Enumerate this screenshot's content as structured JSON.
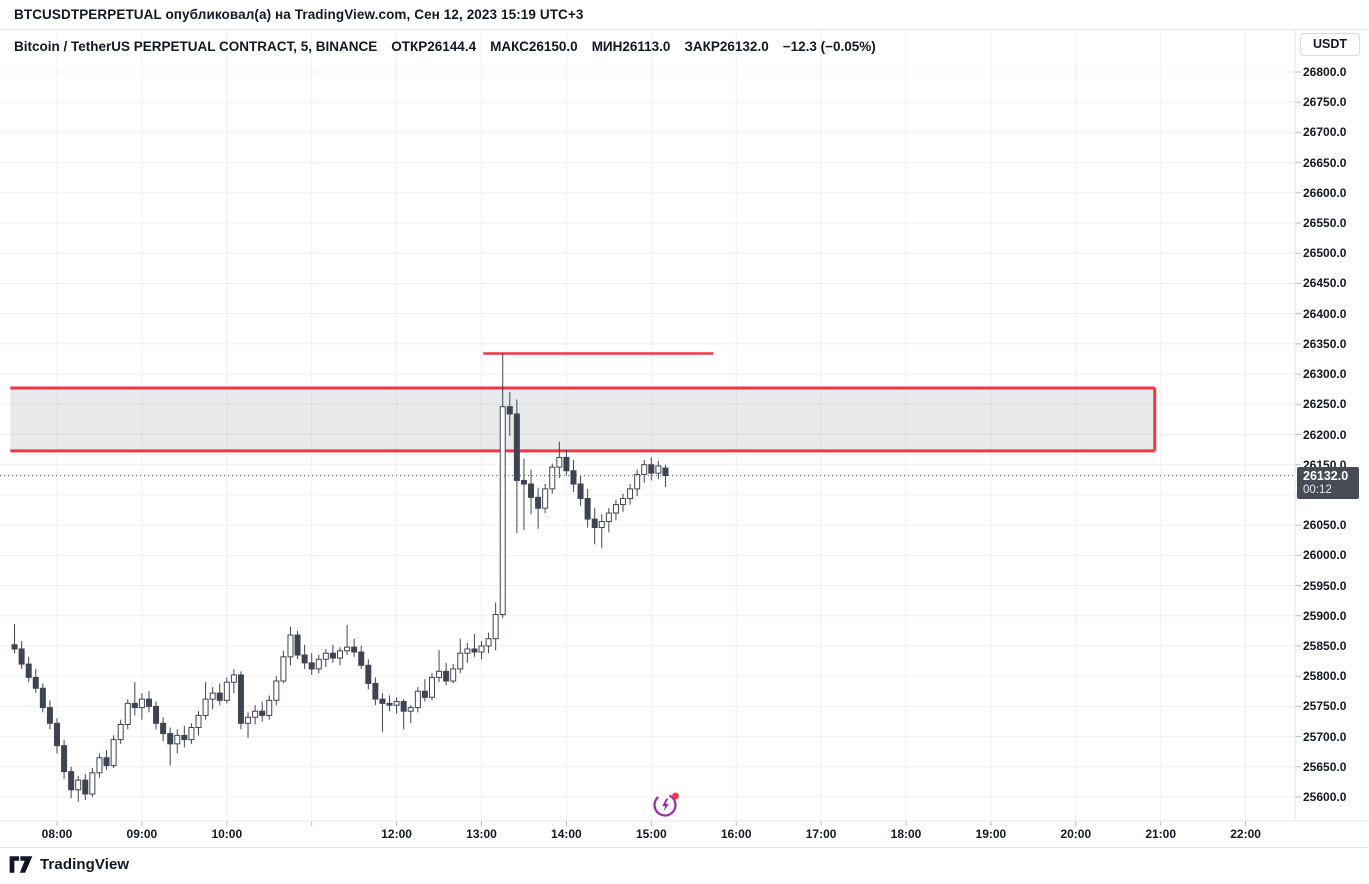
{
  "page": {
    "title_bar": "BTCUSDTPERPETUAL опубликовал(а) на TradingView.com, Сен 12, 2023 15:19 UTC+3"
  },
  "header": {
    "symbol_title": "Bitcoin / TetherUS PERPETUAL CONTRACT, 5, BINANCE",
    "stats": [
      "ОТКР26144.4",
      "МАКС26150.0",
      "МИН26113.0",
      "ЗАКР26132.0",
      "−12.3 (−0.05%)"
    ],
    "currency_button": "USDT"
  },
  "footer": {
    "logo_text": "TradingView"
  },
  "icons": [
    "lightning-streak-icon",
    "tradingview-logo-icon"
  ],
  "colors": {
    "text": "#131722",
    "grid": "#eef0f4",
    "candle_dark": "#3e4451",
    "candle_up_fill": "#ffffff",
    "drawing_red": "#f23645",
    "zone_fill": "rgba(120,123,134,0.16)",
    "price_tag_bg": "#474b56",
    "axis_tick": "#b8bcc6",
    "dotted_price_line": "#4c5059",
    "lightning_purple": "#9c27b0"
  },
  "chart_data": {
    "type": "candlestick",
    "title": "Bitcoin / TetherUS PERPETUAL CONTRACT, 5, BINANCE",
    "interval_minutes": 5,
    "last_price": 26132.0,
    "price_line": {
      "label": "26132.0",
      "countdown": "00:12",
      "price": 26132.0
    },
    "price_axis": {
      "min": 25600,
      "max": 26800,
      "step": 50,
      "ticks": [
        "26800.0",
        "26750.0",
        "26700.0",
        "26650.0",
        "26600.0",
        "26550.0",
        "26500.0",
        "26450.0",
        "26400.0",
        "26350.0",
        "26300.0",
        "26250.0",
        "26200.0",
        "26150.0",
        "26100.0",
        "26050.0",
        "26000.0",
        "25950.0",
        "25900.0",
        "25850.0",
        "25800.0",
        "25750.0",
        "25700.0",
        "25650.0",
        "25600.0"
      ]
    },
    "time_axis": {
      "labels": [
        {
          "label": "08:00",
          "hour": 8
        },
        {
          "label": "09:00",
          "hour": 9
        },
        {
          "label": "10:00",
          "hour": 10
        },
        {
          "label": "12:00",
          "hour": 12
        },
        {
          "label": "13:00",
          "hour": 13
        },
        {
          "label": "14:00",
          "hour": 14
        },
        {
          "label": "15:00",
          "hour": 15
        },
        {
          "label": "16:00",
          "hour": 16
        },
        {
          "label": "17:00",
          "hour": 17
        },
        {
          "label": "18:00",
          "hour": 18
        },
        {
          "label": "19:00",
          "hour": 19
        },
        {
          "label": "20:00",
          "hour": 20
        },
        {
          "label": "21:00",
          "hour": 21
        },
        {
          "label": "22:00",
          "hour": 22
        }
      ],
      "grid_hours": [
        8,
        9,
        10,
        11,
        12,
        13,
        14,
        15,
        16,
        17,
        18,
        19,
        20,
        21,
        22
      ]
    },
    "drawings": {
      "zone": {
        "type": "rect",
        "price_top": 26277,
        "price_bottom": 26173,
        "time_start": 7.45,
        "time_end": 20.93,
        "border_color": "#f23645",
        "fill_color": "rgba(120,123,134,0.16)"
      },
      "resistance_line": {
        "type": "horizontal_segment",
        "price": 26334,
        "time_start": 13.02,
        "time_end": 15.73,
        "color": "#f23645"
      }
    },
    "candles_meta": {
      "first_bar_hour": 7.5,
      "bar_hours": 0.0833333,
      "fields": [
        "open",
        "high",
        "low",
        "close"
      ]
    },
    "candles": [
      [
        25852,
        25886,
        25838,
        25845
      ],
      [
        25845,
        25858,
        25812,
        25820
      ],
      [
        25820,
        25832,
        25790,
        25798
      ],
      [
        25798,
        25812,
        25772,
        25780
      ],
      [
        25780,
        25788,
        25740,
        25748
      ],
      [
        25748,
        25760,
        25712,
        25722
      ],
      [
        25722,
        25730,
        25672,
        25685
      ],
      [
        25685,
        25695,
        25630,
        25642
      ],
      [
        25642,
        25650,
        25598,
        25612
      ],
      [
        25612,
        25635,
        25592,
        25628
      ],
      [
        25628,
        25638,
        25595,
        25605
      ],
      [
        25605,
        25648,
        25600,
        25640
      ],
      [
        25640,
        25672,
        25632,
        25665
      ],
      [
        25665,
        25678,
        25645,
        25652
      ],
      [
        25652,
        25702,
        25648,
        25695
      ],
      [
        25695,
        25728,
        25688,
        25720
      ],
      [
        25720,
        25762,
        25712,
        25755
      ],
      [
        25755,
        25790,
        25735,
        25748
      ],
      [
        25748,
        25772,
        25728,
        25762
      ],
      [
        25762,
        25775,
        25740,
        25750
      ],
      [
        25750,
        25758,
        25712,
        25722
      ],
      [
        25722,
        25732,
        25692,
        25705
      ],
      [
        25705,
        25715,
        25652,
        25688
      ],
      [
        25688,
        25712,
        25672,
        25702
      ],
      [
        25702,
        25718,
        25682,
        25695
      ],
      [
        25695,
        25722,
        25688,
        25715
      ],
      [
        25715,
        25742,
        25702,
        25735
      ],
      [
        25735,
        25790,
        25728,
        25762
      ],
      [
        25762,
        25782,
        25745,
        25772
      ],
      [
        25772,
        25788,
        25752,
        25760
      ],
      [
        25760,
        25798,
        25755,
        25790
      ],
      [
        25790,
        25812,
        25772,
        25802
      ],
      [
        25802,
        25808,
        25712,
        25722
      ],
      [
        25722,
        25740,
        25698,
        25732
      ],
      [
        25732,
        25752,
        25720,
        25742
      ],
      [
        25742,
        25758,
        25725,
        25735
      ],
      [
        25735,
        25768,
        25728,
        25760
      ],
      [
        25760,
        25800,
        25752,
        25792
      ],
      [
        25792,
        25842,
        25788,
        25832
      ],
      [
        25832,
        25882,
        25818,
        25868
      ],
      [
        25868,
        25875,
        25828,
        25835
      ],
      [
        25835,
        25852,
        25812,
        25822
      ],
      [
        25822,
        25838,
        25802,
        25812
      ],
      [
        25812,
        25835,
        25805,
        25828
      ],
      [
        25828,
        25845,
        25815,
        25838
      ],
      [
        25838,
        25852,
        25822,
        25830
      ],
      [
        25830,
        25848,
        25818,
        25842
      ],
      [
        25842,
        25885,
        25835,
        25848
      ],
      [
        25848,
        25862,
        25832,
        25840
      ],
      [
        25840,
        25850,
        25812,
        25818
      ],
      [
        25818,
        25828,
        25778,
        25788
      ],
      [
        25788,
        25798,
        25752,
        25762
      ],
      [
        25762,
        25772,
        25708,
        25755
      ],
      [
        25755,
        25768,
        25742,
        25752
      ],
      [
        25752,
        25765,
        25738,
        25758
      ],
      [
        25758,
        25762,
        25712,
        25742
      ],
      [
        25742,
        25752,
        25722,
        25748
      ],
      [
        25748,
        25782,
        25740,
        25775
      ],
      [
        25775,
        25795,
        25758,
        25765
      ],
      [
        25765,
        25805,
        25760,
        25798
      ],
      [
        25798,
        25843,
        25790,
        25808
      ],
      [
        25808,
        25822,
        25785,
        25792
      ],
      [
        25792,
        25820,
        25788,
        25812
      ],
      [
        25812,
        25862,
        25805,
        25838
      ],
      [
        25838,
        25855,
        25822,
        25845
      ],
      [
        25845,
        25870,
        25832,
        25840
      ],
      [
        25840,
        25858,
        25828,
        25850
      ],
      [
        25850,
        25872,
        25838,
        25862
      ],
      [
        25862,
        25922,
        25843,
        25902
      ],
      [
        25902,
        26335,
        25896,
        26246
      ],
      [
        26246,
        26270,
        26198,
        26234
      ],
      [
        26234,
        26258,
        26037,
        26124
      ],
      [
        26124,
        26160,
        26042,
        26118
      ],
      [
        26118,
        26142,
        26068,
        26096
      ],
      [
        26096,
        26112,
        26044,
        26078
      ],
      [
        26078,
        26118,
        26070,
        26110
      ],
      [
        26110,
        26152,
        26102,
        26146
      ],
      [
        26146,
        26188,
        26128,
        26162
      ],
      [
        26162,
        26175,
        26132,
        26140
      ],
      [
        26140,
        26158,
        26105,
        26118
      ],
      [
        26118,
        26132,
        26082,
        26094
      ],
      [
        26094,
        26110,
        26046,
        26060
      ],
      [
        26060,
        26078,
        26018,
        26046
      ],
      [
        26046,
        26068,
        26012,
        26056
      ],
      [
        26056,
        26078,
        26038,
        26070
      ],
      [
        26070,
        26092,
        26058,
        26084
      ],
      [
        26084,
        26102,
        26072,
        26094
      ],
      [
        26094,
        26118,
        26084,
        26110
      ],
      [
        26110,
        26142,
        26098,
        26134
      ],
      [
        26134,
        26158,
        26120,
        26150
      ],
      [
        26150,
        26162,
        26124,
        26136
      ],
      [
        26136,
        26156,
        26126,
        26148
      ],
      [
        26144.4,
        26150,
        26113,
        26132
      ]
    ]
  }
}
